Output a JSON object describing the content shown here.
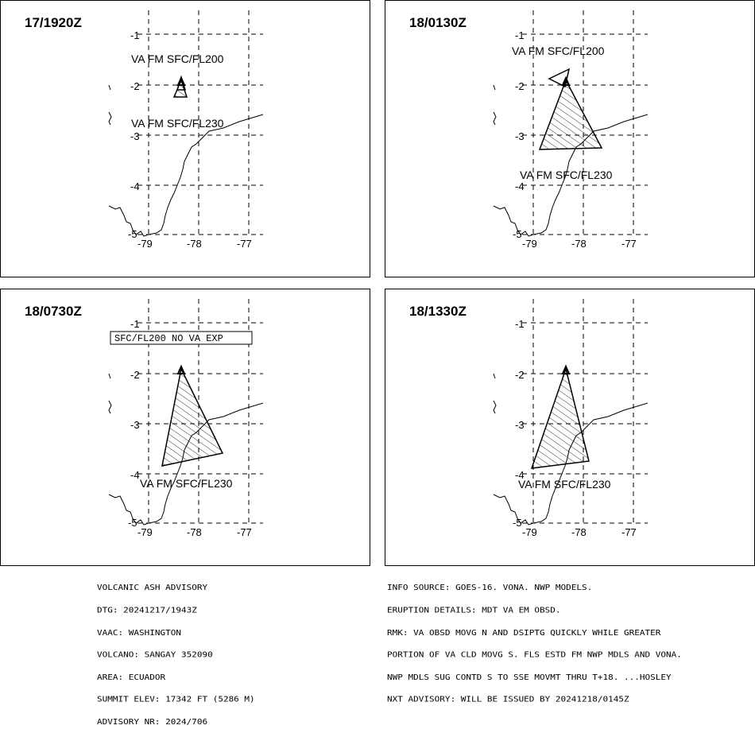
{
  "panels": [
    {
      "time": "17/1920Z",
      "labels": [
        "VA FM SFC/FL200",
        "VA FM SFC/FL230"
      ],
      "boxed_label": ""
    },
    {
      "time": "18/0130Z",
      "labels": [
        "VA FM SFC/FL200",
        "VA FM SFC/FL230"
      ],
      "boxed_label": ""
    },
    {
      "time": "18/0730Z",
      "labels": [
        "VA FM SFC/FL230"
      ],
      "boxed_label": "SFC/FL200 NO VA EXP"
    },
    {
      "time": "18/1330Z",
      "labels": [
        "VA FM SFC/FL230"
      ],
      "boxed_label": ""
    }
  ],
  "axes": {
    "lat_ticks": [
      "-1",
      "-2",
      "-3",
      "-4",
      "-5"
    ],
    "lon_ticks": [
      "-79",
      "-78",
      "-77"
    ]
  },
  "advisory_left": [
    "VOLCANIC ASH ADVISORY",
    "DTG: 20241217/1943Z",
    "VAAC: WASHINGTON",
    "VOLCANO: SANGAY 352090",
    "AREA: ECUADOR",
    "SUMMIT ELEV: 17342 FT (5286 M)",
    "ADVISORY NR: 2024/706"
  ],
  "advisory_right": [
    "INFO SOURCE: GOES-16. VONA. NWP MODELS.",
    "ERUPTION DETAILS: MDT VA EM OBSD.",
    "RMK: VA OBSD MOVG N AND DSIPTG QUICKLY WHILE GREATER",
    "PORTION OF VA CLD MOVG S. FLS ESTD FM NWP MDLS AND VONA.",
    "NWP MDLS SUG CONTD S TO SSE MOVMT THRU T+18. ...HOSLEY",
    "NXT ADVISORY: WILL BE ISSUED BY 20241218/0145Z"
  ]
}
